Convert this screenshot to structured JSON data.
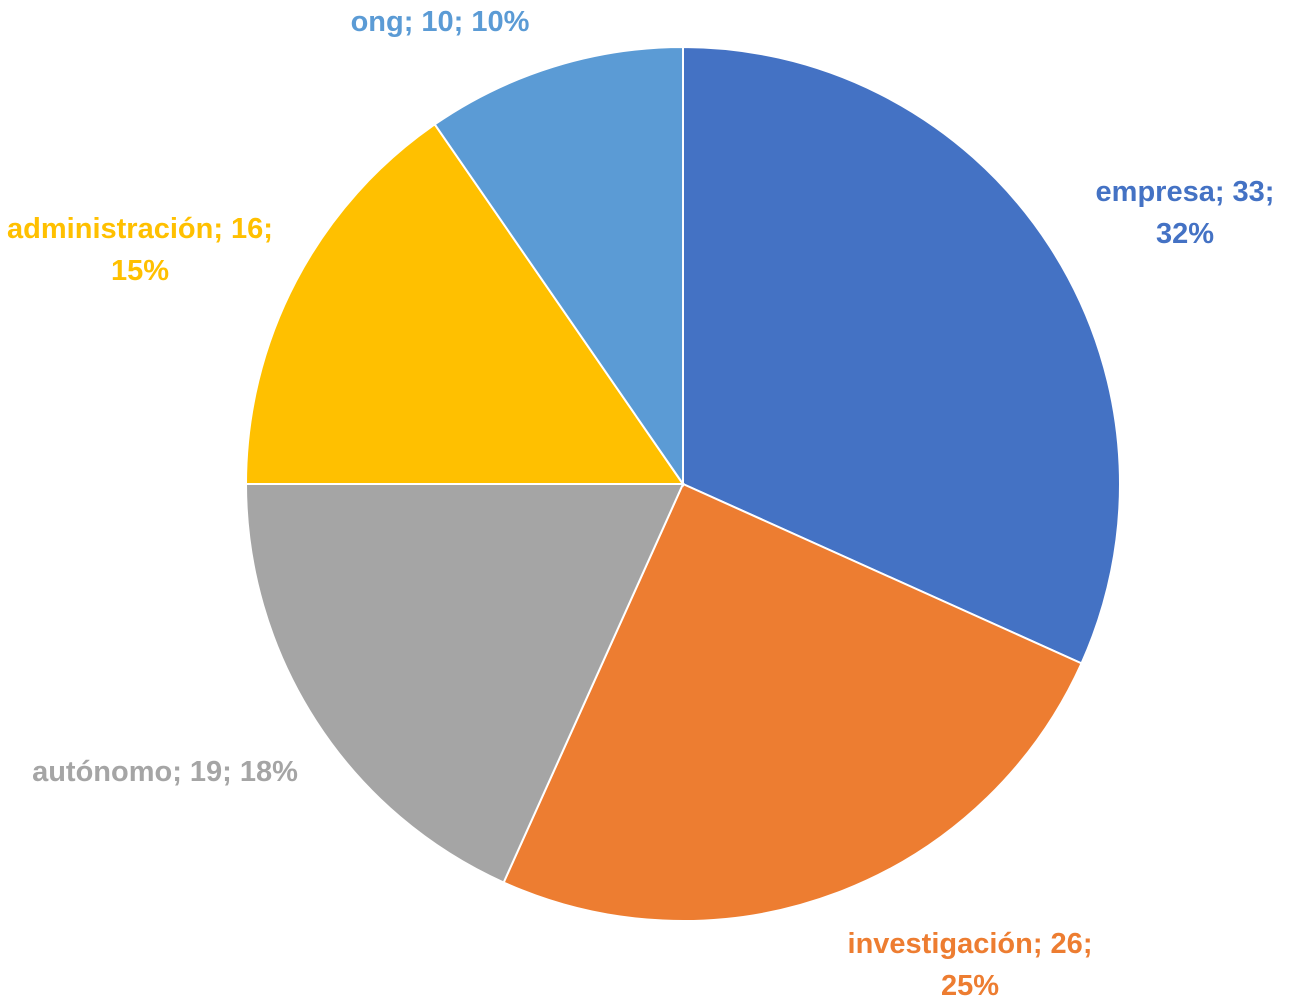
{
  "chart_data": {
    "type": "pie",
    "categories": [
      "empresa",
      "investigación",
      "autónomo",
      "administración",
      "ong"
    ],
    "values": [
      33,
      26,
      19,
      16,
      10
    ],
    "value_labels": [
      "empresa; 33; 32%",
      "investigación; 26; 25%",
      "autónomo; 19; 18%",
      "administración; 16; 15%",
      "ong; 10; 10%"
    ],
    "colors": [
      "#4472c4",
      "#ed7d31",
      "#a5a5a5",
      "#ffc000",
      "#5b9bd5"
    ]
  }
}
